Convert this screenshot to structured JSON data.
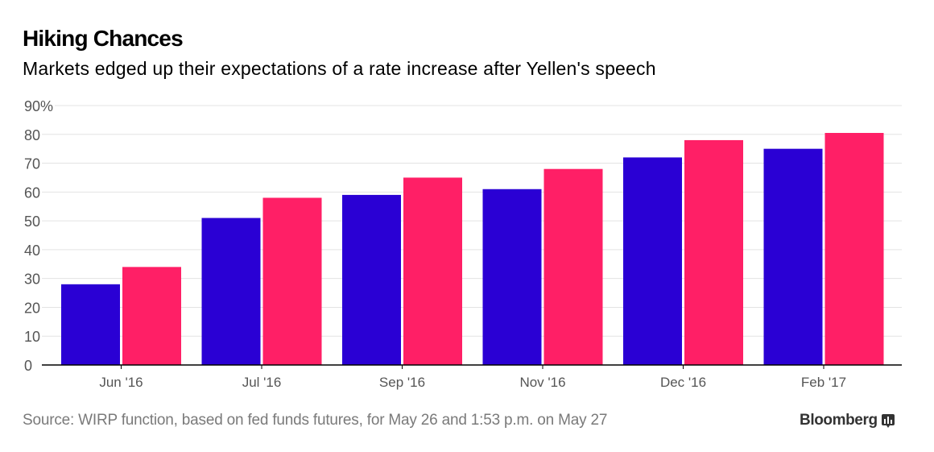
{
  "header": {
    "title": "Hiking Chances",
    "subtitle": "Markets edged up their expectations of a rate increase after Yellen's speech"
  },
  "footer": {
    "source": "Source: WIRP function, based on fed funds futures, for May 26 and 1:53 p.m. on May 27",
    "brand": "Bloomberg"
  },
  "chart_data": {
    "type": "bar",
    "title": "Hiking Chances",
    "subtitle": "Markets edged up their expectations of a rate increase after Yellen's speech",
    "xlabel": "",
    "ylabel": "",
    "categories": [
      "Jun '16",
      "Jul '16",
      "Sep '16",
      "Nov '16",
      "Dec '16",
      "Feb '17"
    ],
    "series": [
      {
        "name": "May 26",
        "color": "#2a00d4",
        "values": [
          28,
          51,
          59,
          61,
          72,
          75
        ]
      },
      {
        "name": "May 27, 1:53 p.m.",
        "color": "#ff1f66",
        "values": [
          34,
          58,
          65,
          68,
          78,
          80.5
        ]
      }
    ],
    "ylim": [
      0,
      90
    ],
    "yticks": [
      0,
      10,
      20,
      30,
      40,
      50,
      60,
      70,
      80,
      90
    ],
    "ytick_labels": [
      "0",
      "10",
      "20",
      "30",
      "40",
      "50",
      "60",
      "70",
      "80",
      "90%"
    ],
    "grid": true,
    "legend": "none"
  }
}
